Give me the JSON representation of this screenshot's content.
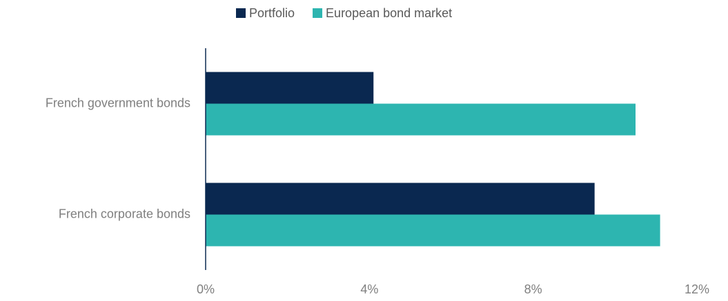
{
  "chart_data": {
    "type": "barh",
    "categories": [
      "French government bonds",
      "French corporate bonds"
    ],
    "series": [
      {
        "name": "Portfolio",
        "color": "#0a2850",
        "values": [
          4.1,
          9.5
        ]
      },
      {
        "name": "European bond market",
        "color": "#2db5b0",
        "values": [
          10.5,
          11.1
        ]
      }
    ],
    "xlim": [
      0,
      12
    ],
    "xticks": [
      {
        "value": 0,
        "label": "0%"
      },
      {
        "value": 4,
        "label": "4%"
      },
      {
        "value": 8,
        "label": "8%"
      },
      {
        "value": 12,
        "label": "12%"
      }
    ],
    "legend": "top"
  }
}
